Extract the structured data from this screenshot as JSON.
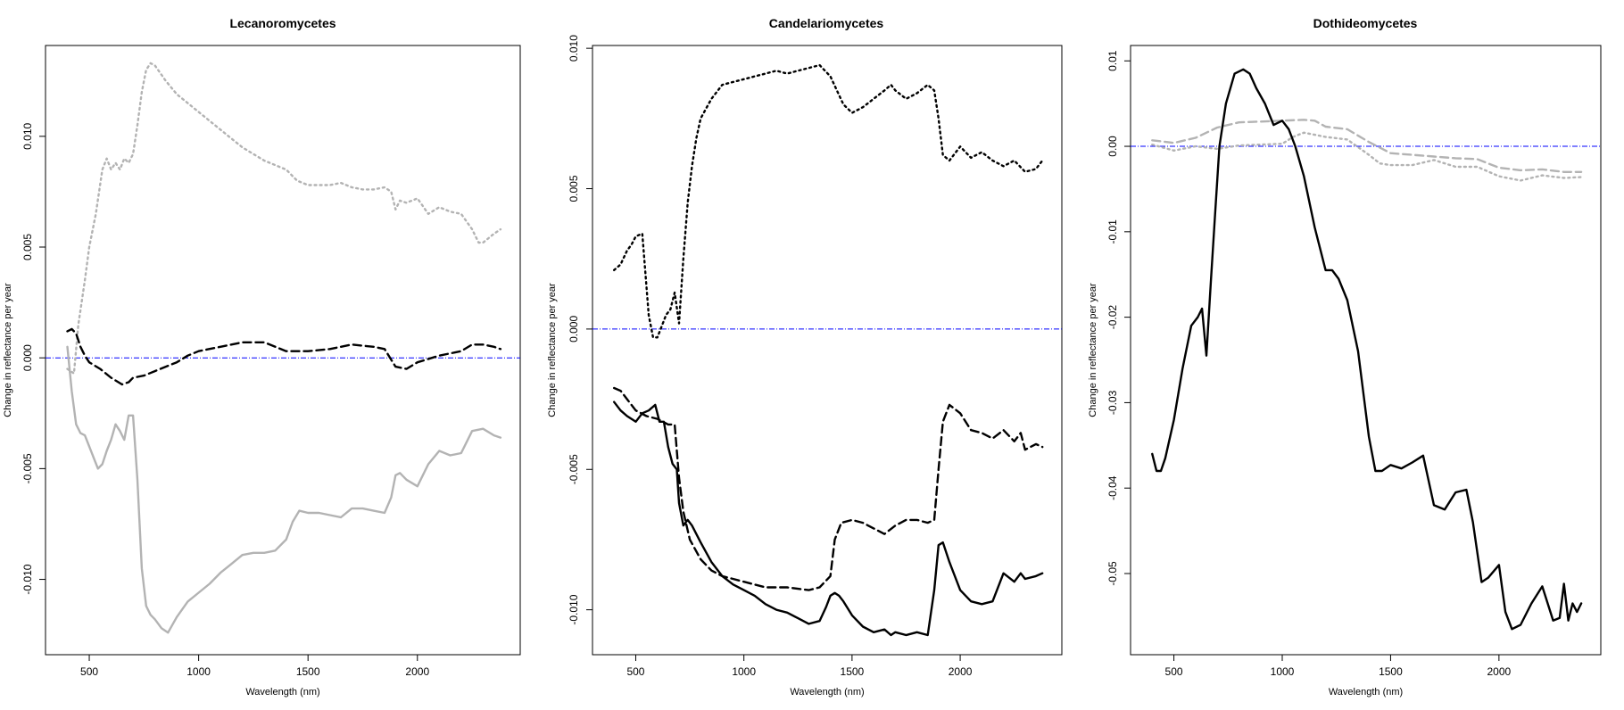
{
  "colors": {
    "black": "#000000",
    "gray": "#b3b3b3",
    "zero_line": "#0000ff"
  },
  "chart_data": [
    {
      "type": "line",
      "title": "Lecanoromycetes",
      "xlabel": "Wavelength (nm)",
      "ylabel": "Change in reflectance per year",
      "xlim": [
        300,
        2470
      ],
      "ylim": [
        -0.0134,
        0.0141
      ],
      "xticks": [
        500,
        1000,
        1500,
        2000
      ],
      "xtick_labels": [
        "500",
        "1000",
        "1500",
        "2000"
      ],
      "yticks": [
        -0.01,
        -0.005,
        0,
        0.005,
        0.01
      ],
      "ytick_labels": [
        "-0.010",
        "-0.005",
        "0.000",
        "0.005",
        "0.010"
      ],
      "hline": 0,
      "series": [
        {
          "color": "gray",
          "dash": "dotted",
          "x": [
            400,
            430,
            450,
            480,
            500,
            530,
            560,
            580,
            600,
            620,
            640,
            660,
            680,
            700,
            720,
            740,
            760,
            780,
            800,
            850,
            900,
            1000,
            1100,
            1200,
            1300,
            1400,
            1450,
            1500,
            1600,
            1650,
            1700,
            1750,
            1800,
            1850,
            1880,
            1900,
            1920,
            1950,
            2000,
            2050,
            2100,
            2150,
            2200,
            2250,
            2280,
            2300,
            2350,
            2380
          ],
          "y": [
            -0.0005,
            -0.0007,
            0.0015,
            0.0035,
            0.005,
            0.0065,
            0.0085,
            0.009,
            0.0085,
            0.0088,
            0.0085,
            0.009,
            0.0088,
            0.0092,
            0.0105,
            0.012,
            0.013,
            0.0133,
            0.0132,
            0.0125,
            0.0119,
            0.0111,
            0.0103,
            0.0095,
            0.0089,
            0.0085,
            0.008,
            0.0078,
            0.0078,
            0.0079,
            0.0077,
            0.0076,
            0.0076,
            0.0077,
            0.0075,
            0.0067,
            0.0071,
            0.007,
            0.0072,
            0.0065,
            0.0068,
            0.0066,
            0.0065,
            0.0058,
            0.0052,
            0.0052,
            0.0056,
            0.0058
          ]
        },
        {
          "color": "gray",
          "dash": "solid",
          "x": [
            400,
            420,
            440,
            460,
            480,
            500,
            520,
            540,
            560,
            580,
            600,
            620,
            640,
            660,
            680,
            700,
            720,
            740,
            760,
            780,
            800,
            830,
            860,
            900,
            950,
            1000,
            1050,
            1100,
            1150,
            1200,
            1250,
            1300,
            1350,
            1400,
            1430,
            1460,
            1500,
            1550,
            1600,
            1650,
            1700,
            1750,
            1800,
            1850,
            1880,
            1900,
            1920,
            1950,
            2000,
            2050,
            2100,
            2150,
            2200,
            2250,
            2300,
            2350,
            2380
          ],
          "y": [
            0.0005,
            -0.0015,
            -0.003,
            -0.0034,
            -0.0035,
            -0.004,
            -0.0045,
            -0.005,
            -0.0048,
            -0.0042,
            -0.0037,
            -0.003,
            -0.0033,
            -0.0037,
            -0.0026,
            -0.0026,
            -0.0055,
            -0.0095,
            -0.0112,
            -0.0116,
            -0.0118,
            -0.0122,
            -0.0124,
            -0.0117,
            -0.011,
            -0.0106,
            -0.0102,
            -0.0097,
            -0.0093,
            -0.0089,
            -0.0088,
            -0.0088,
            -0.0087,
            -0.0082,
            -0.0074,
            -0.0069,
            -0.007,
            -0.007,
            -0.0071,
            -0.0072,
            -0.0068,
            -0.0068,
            -0.0069,
            -0.007,
            -0.0063,
            -0.0053,
            -0.0052,
            -0.0055,
            -0.0058,
            -0.0048,
            -0.0042,
            -0.0044,
            -0.0043,
            -0.0033,
            -0.0032,
            -0.0035,
            -0.0036
          ]
        },
        {
          "color": "black",
          "dash": "dashed",
          "x": [
            400,
            420,
            440,
            460,
            480,
            500,
            550,
            600,
            650,
            680,
            700,
            750,
            800,
            850,
            900,
            950,
            1000,
            1100,
            1200,
            1300,
            1400,
            1450,
            1500,
            1600,
            1700,
            1800,
            1850,
            1900,
            1950,
            2000,
            2100,
            2200,
            2250,
            2300,
            2350,
            2380
          ],
          "y": [
            0.0012,
            0.0013,
            0.0011,
            0.0005,
            0.0001,
            -0.0002,
            -0.0005,
            -0.0009,
            -0.0012,
            -0.0011,
            -0.0009,
            -0.0008,
            -0.0006,
            -0.0004,
            -0.0002,
            0.0001,
            0.0003,
            0.0005,
            0.0007,
            0.0007,
            0.0003,
            0.0003,
            0.0003,
            0.0004,
            0.0006,
            0.0005,
            0.0004,
            -0.0004,
            -0.0005,
            -0.0002,
            0.0001,
            0.0003,
            0.0006,
            0.0006,
            0.0005,
            0.0004
          ]
        }
      ]
    },
    {
      "type": "line",
      "title": "Candelariomycetes",
      "xlabel": "Wavelength (nm)",
      "ylabel": "Change in reflectance per year",
      "xlim": [
        300,
        2470
      ],
      "ylim": [
        -0.0116,
        0.0101
      ],
      "xticks": [
        500,
        1000,
        1500,
        2000
      ],
      "xtick_labels": [
        "500",
        "1000",
        "1500",
        "2000"
      ],
      "yticks": [
        -0.01,
        -0.005,
        0,
        0.005,
        0.01
      ],
      "ytick_labels": [
        "-0.010",
        "-0.005",
        "0.000",
        "0.005",
        "0.010"
      ],
      "hline": 0,
      "series": [
        {
          "color": "black",
          "dash": "dotted",
          "x": [
            400,
            430,
            460,
            480,
            500,
            530,
            560,
            580,
            600,
            620,
            640,
            660,
            680,
            700,
            720,
            740,
            760,
            780,
            800,
            850,
            900,
            950,
            1000,
            1050,
            1100,
            1150,
            1200,
            1250,
            1300,
            1350,
            1400,
            1430,
            1460,
            1500,
            1550,
            1600,
            1650,
            1680,
            1700,
            1750,
            1800,
            1850,
            1880,
            1900,
            1920,
            1950,
            2000,
            2050,
            2100,
            2150,
            2200,
            2250,
            2300,
            2350,
            2380
          ],
          "y": [
            0.0021,
            0.0023,
            0.0028,
            0.003,
            0.0033,
            0.0034,
            0.0005,
            -0.0003,
            -0.0003,
            0.0001,
            0.0005,
            0.0007,
            0.0013,
            0.0002,
            0.0025,
            0.0045,
            0.0058,
            0.0068,
            0.0075,
            0.0082,
            0.0087,
            0.0088,
            0.0089,
            0.009,
            0.0091,
            0.0092,
            0.0091,
            0.0092,
            0.0093,
            0.0094,
            0.009,
            0.0085,
            0.008,
            0.0077,
            0.0079,
            0.0082,
            0.0085,
            0.0087,
            0.0085,
            0.0082,
            0.0084,
            0.0087,
            0.0085,
            0.0075,
            0.0062,
            0.006,
            0.0065,
            0.0061,
            0.0063,
            0.006,
            0.0058,
            0.006,
            0.0056,
            0.0057,
            0.006
          ]
        },
        {
          "color": "black",
          "dash": "dashed",
          "x": [
            400,
            430,
            460,
            500,
            550,
            600,
            650,
            680,
            700,
            720,
            750,
            800,
            850,
            900,
            1000,
            1100,
            1200,
            1300,
            1350,
            1400,
            1420,
            1450,
            1500,
            1550,
            1600,
            1650,
            1700,
            1750,
            1800,
            1850,
            1880,
            1900,
            1920,
            1950,
            2000,
            2050,
            2100,
            2150,
            2200,
            2250,
            2280,
            2300,
            2350,
            2380
          ],
          "y": [
            -0.0021,
            -0.0022,
            -0.0025,
            -0.0029,
            -0.0031,
            -0.0032,
            -0.0034,
            -0.0034,
            -0.0053,
            -0.0065,
            -0.0075,
            -0.0082,
            -0.0086,
            -0.0088,
            -0.009,
            -0.0092,
            -0.0092,
            -0.0093,
            -0.0092,
            -0.0088,
            -0.0075,
            -0.0069,
            -0.0068,
            -0.0069,
            -0.0071,
            -0.0073,
            -0.007,
            -0.0068,
            -0.0068,
            -0.0069,
            -0.0068,
            -0.005,
            -0.0033,
            -0.0027,
            -0.003,
            -0.0036,
            -0.0037,
            -0.0039,
            -0.0036,
            -0.004,
            -0.0037,
            -0.0043,
            -0.0041,
            -0.0042
          ]
        },
        {
          "color": "black",
          "dash": "solid",
          "x": [
            400,
            430,
            460,
            500,
            530,
            560,
            590,
            610,
            630,
            650,
            670,
            690,
            700,
            720,
            740,
            760,
            800,
            850,
            900,
            950,
            1000,
            1050,
            1100,
            1150,
            1200,
            1250,
            1300,
            1350,
            1380,
            1400,
            1420,
            1440,
            1460,
            1500,
            1550,
            1600,
            1650,
            1680,
            1700,
            1750,
            1800,
            1850,
            1880,
            1900,
            1920,
            1950,
            2000,
            2050,
            2100,
            2150,
            2200,
            2250,
            2280,
            2300,
            2350,
            2380
          ],
          "y": [
            -0.0026,
            -0.0029,
            -0.0031,
            -0.0033,
            -0.003,
            -0.0029,
            -0.0027,
            -0.0033,
            -0.0033,
            -0.0042,
            -0.0048,
            -0.005,
            -0.0062,
            -0.007,
            -0.0068,
            -0.007,
            -0.0076,
            -0.0083,
            -0.0088,
            -0.0091,
            -0.0093,
            -0.0095,
            -0.0098,
            -0.01,
            -0.0101,
            -0.0103,
            -0.0105,
            -0.0104,
            -0.0099,
            -0.0095,
            -0.0094,
            -0.0095,
            -0.0097,
            -0.0102,
            -0.0106,
            -0.0108,
            -0.0107,
            -0.0109,
            -0.0108,
            -0.0109,
            -0.0108,
            -0.0109,
            -0.0093,
            -0.0077,
            -0.0076,
            -0.0083,
            -0.0093,
            -0.0097,
            -0.0098,
            -0.0097,
            -0.0087,
            -0.009,
            -0.0087,
            -0.0089,
            -0.0088,
            -0.0087
          ]
        }
      ]
    },
    {
      "type": "line",
      "title": "Dothideomycetes",
      "xlabel": "Wavelength (nm)",
      "ylabel": "Change in reflectance per year",
      "xlim": [
        300,
        2470
      ],
      "ylim": [
        -0.0595,
        0.0118
      ],
      "xticks": [
        500,
        1000,
        1500,
        2000
      ],
      "xtick_labels": [
        "500",
        "1000",
        "1500",
        "2000"
      ],
      "yticks": [
        -0.05,
        -0.04,
        -0.03,
        -0.02,
        -0.01,
        0,
        0.01
      ],
      "ytick_labels": [
        "-0.05",
        "-0.04",
        "-0.03",
        "-0.02",
        "-0.01",
        "0.00",
        "0.01"
      ],
      "hline": 0,
      "series": [
        {
          "color": "gray",
          "dash": "dashed",
          "x": [
            400,
            500,
            600,
            700,
            800,
            900,
            1000,
            1100,
            1150,
            1200,
            1300,
            1400,
            1500,
            1600,
            1700,
            1800,
            1900,
            2000,
            2100,
            2200,
            2300,
            2380
          ],
          "y": [
            0.0007,
            0.0004,
            0.001,
            0.0022,
            0.0028,
            0.0029,
            0.003,
            0.0031,
            0.003,
            0.0023,
            0.002,
            0.0005,
            -0.0008,
            -0.001,
            -0.0012,
            -0.0014,
            -0.0015,
            -0.0025,
            -0.0028,
            -0.0027,
            -0.003,
            -0.003
          ]
        },
        {
          "color": "gray",
          "dash": "dotted",
          "x": [
            400,
            500,
            600,
            700,
            800,
            900,
            1000,
            1050,
            1100,
            1200,
            1300,
            1400,
            1450,
            1500,
            1600,
            1700,
            1800,
            1900,
            2000,
            2100,
            2200,
            2300,
            2380
          ],
          "y": [
            0.0002,
            -0.0005,
            0.0,
            -0.0003,
            0.0001,
            0.0002,
            0.0003,
            0.0011,
            0.0016,
            0.0011,
            0.0008,
            -0.001,
            -0.002,
            -0.0022,
            -0.0022,
            -0.0016,
            -0.0024,
            -0.0024,
            -0.0035,
            -0.004,
            -0.0034,
            -0.0037,
            -0.0036
          ]
        },
        {
          "color": "black",
          "dash": "solid",
          "x": [
            400,
            420,
            440,
            460,
            500,
            540,
            580,
            610,
            630,
            650,
            670,
            690,
            710,
            740,
            780,
            820,
            850,
            880,
            920,
            960,
            1000,
            1030,
            1060,
            1100,
            1150,
            1200,
            1230,
            1260,
            1300,
            1350,
            1400,
            1430,
            1460,
            1500,
            1550,
            1600,
            1650,
            1700,
            1750,
            1800,
            1850,
            1880,
            1920,
            1950,
            2000,
            2030,
            2060,
            2100,
            2150,
            2200,
            2250,
            2280,
            2300,
            2320,
            2340,
            2360,
            2380
          ],
          "y": [
            -0.036,
            -0.038,
            -0.038,
            -0.0365,
            -0.032,
            -0.026,
            -0.021,
            -0.02,
            -0.019,
            -0.0245,
            -0.016,
            -0.008,
            0.0,
            0.005,
            0.0085,
            0.009,
            0.0085,
            0.0068,
            0.005,
            0.0025,
            0.003,
            0.002,
            0.0,
            -0.0035,
            -0.0095,
            -0.0145,
            -0.0145,
            -0.0155,
            -0.018,
            -0.024,
            -0.034,
            -0.038,
            -0.038,
            -0.0373,
            -0.0377,
            -0.037,
            -0.0362,
            -0.042,
            -0.0425,
            -0.0405,
            -0.0402,
            -0.044,
            -0.051,
            -0.0505,
            -0.049,
            -0.0545,
            -0.0565,
            -0.056,
            -0.0535,
            -0.0515,
            -0.0555,
            -0.0552,
            -0.0512,
            -0.0555,
            -0.0535,
            -0.0545,
            -0.0535
          ]
        }
      ]
    }
  ]
}
